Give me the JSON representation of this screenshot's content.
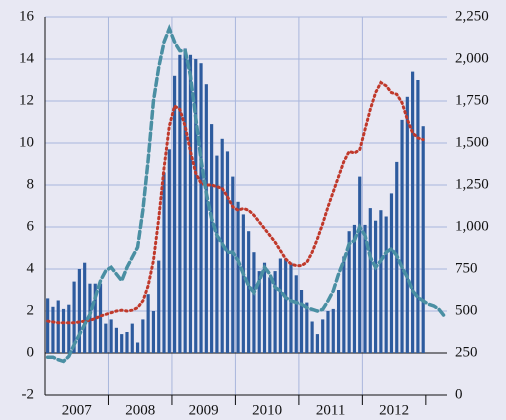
{
  "chart_data": {
    "type": "bar",
    "categories": [
      null,
      null,
      null,
      null,
      null,
      null,
      "2007",
      null,
      null,
      null,
      null,
      null,
      null,
      null,
      null,
      null,
      null,
      null,
      "2008",
      null,
      null,
      null,
      null,
      null,
      null,
      null,
      null,
      null,
      null,
      null,
      "2009",
      null,
      null,
      null,
      null,
      null,
      null,
      null,
      null,
      null,
      null,
      null,
      "2010",
      null,
      null,
      null,
      null,
      null,
      null,
      null,
      null,
      null,
      null,
      null,
      "2011",
      null,
      null,
      null,
      null,
      null,
      null,
      null,
      null,
      null,
      null,
      null,
      "2012",
      null,
      null,
      null,
      null,
      null,
      null,
      null,
      null,
      null
    ],
    "series": [
      {
        "type": "bar",
        "color": "#2d5b9e",
        "values": [
          2.6,
          2.2,
          2.5,
          2.1,
          2.3,
          3.4,
          4.0,
          4.3,
          3.3,
          3.3,
          3.3,
          1.4,
          1.6,
          1.2,
          0.9,
          1.0,
          1.4,
          0.5,
          1.6,
          2.8,
          2.0,
          4.4,
          8.6,
          9.7,
          13.2,
          14.2,
          14.5,
          14.2,
          14.0,
          13.8,
          12.8,
          10.9,
          9.4,
          10.2,
          9.6,
          8.4,
          7.2,
          6.6,
          5.8,
          4.8,
          3.9,
          4.3,
          3.6,
          3.9,
          4.5,
          4.5,
          4.3,
          3.7,
          3.0,
          2.4,
          1.5,
          0.9,
          1.6,
          2.0,
          2.1,
          3.0,
          4.6,
          5.8,
          6.1,
          8.4,
          6.1,
          6.9,
          6.3,
          6.8,
          6.5,
          7.6,
          9.1,
          11.1,
          12.2,
          13.4,
          13.0,
          10.8,
          null,
          null,
          null,
          null
        ]
      },
      {
        "type": "line",
        "axis": "y2",
        "color": "#c0392b",
        "style": "dotted",
        "values": [
          440,
          435,
          430,
          430,
          430,
          430,
          435,
          440,
          445,
          455,
          470,
          480,
          490,
          500,
          505,
          500,
          505,
          520,
          560,
          650,
          800,
          1050,
          1350,
          1600,
          1720,
          1700,
          1600,
          1450,
          1320,
          1260,
          1250,
          1250,
          1240,
          1230,
          1180,
          1120,
          1100,
          1110,
          1100,
          1070,
          1030,
          990,
          950,
          910,
          860,
          810,
          780,
          770,
          770,
          790,
          850,
          930,
          1020,
          1120,
          1210,
          1300,
          1390,
          1450,
          1440,
          1460,
          1580,
          1700,
          1800,
          1860,
          1840,
          1800,
          1790,
          1740,
          1640,
          1560,
          1530,
          1520,
          null,
          null,
          null,
          null
        ]
      },
      {
        "type": "line",
        "axis": "y2",
        "color": "#4a8fa3",
        "style": "dashed",
        "values": [
          225,
          225,
          210,
          200,
          230,
          300,
          360,
          420,
          480,
          580,
          680,
          740,
          760,
          720,
          680,
          760,
          820,
          880,
          1100,
          1400,
          1750,
          1950,
          2100,
          2180,
          2100,
          2050,
          2050,
          1900,
          1650,
          1400,
          1200,
          1050,
          950,
          900,
          850,
          850,
          800,
          720,
          650,
          610,
          680,
          760,
          720,
          640,
          620,
          580,
          560,
          550,
          540,
          520,
          510,
          500,
          510,
          560,
          620,
          720,
          800,
          900,
          920,
          1000,
          950,
          820,
          760,
          800,
          850,
          870,
          830,
          760,
          700,
          620,
          580,
          560,
          540,
          530,
          510,
          470
        ]
      }
    ],
    "ylim": [
      -2,
      16
    ],
    "yticks": [
      -2,
      0,
      2,
      4,
      6,
      8,
      10,
      12,
      14,
      16
    ],
    "y2lim": [
      0,
      2250
    ],
    "y2ticks": [
      0,
      250,
      500,
      750,
      {
        "value": 1000,
        "label": "1,000"
      },
      {
        "value": 1250,
        "label": "1,250"
      },
      {
        "value": 1500,
        "label": "1,500"
      },
      {
        "value": 1750,
        "label": "1,750"
      },
      {
        "value": 2000,
        "label": "2,000"
      },
      {
        "value": 2250,
        "label": "2,250"
      }
    ],
    "grid": true
  }
}
